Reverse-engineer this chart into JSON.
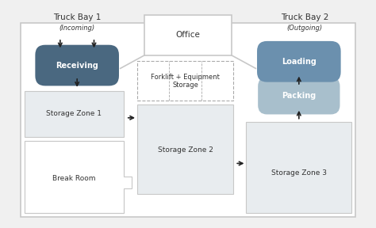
{
  "fig_bg": "#f0f0f0",
  "white": "#ffffff",
  "outer_border_color": "#c8c8c8",
  "outer_border_lw": 1.2,
  "truck_bay1_label": "Truck Bay 1",
  "truck_bay1_sub": "(Incoming)",
  "truck_bay2_label": "Truck Bay 2",
  "truck_bay2_sub": "(Outgoing)",
  "office_label": "Office",
  "receiving_label": "Receiving",
  "receiving_color": "#4a6880",
  "receiving_text_color": "#ffffff",
  "loading_label": "Loading",
  "loading_color": "#6b90ae",
  "loading_text_color": "#ffffff",
  "packing_label": "Packing",
  "packing_color": "#a8bfcc",
  "packing_text_color": "#ffffff",
  "storage1_label": "Storage Zone 1",
  "storage2_label": "Storage Zone 2",
  "storage3_label": "Storage Zone 3",
  "storage_color": "#e8ecef",
  "storage_border": "#c8c8c8",
  "forklift_label": "Forklift + Equipment\nStorage",
  "forklift_color": "#ffffff",
  "forklift_border": "#aaaaaa",
  "break_room_label": "Break Room",
  "arrow_color": "#222222",
  "label_color": "#333333",
  "font_size_bay": 7.5,
  "font_size_sub": 6.0,
  "font_size_zone": 6.5,
  "font_size_pill": 7.0,
  "font_size_office": 7.5
}
